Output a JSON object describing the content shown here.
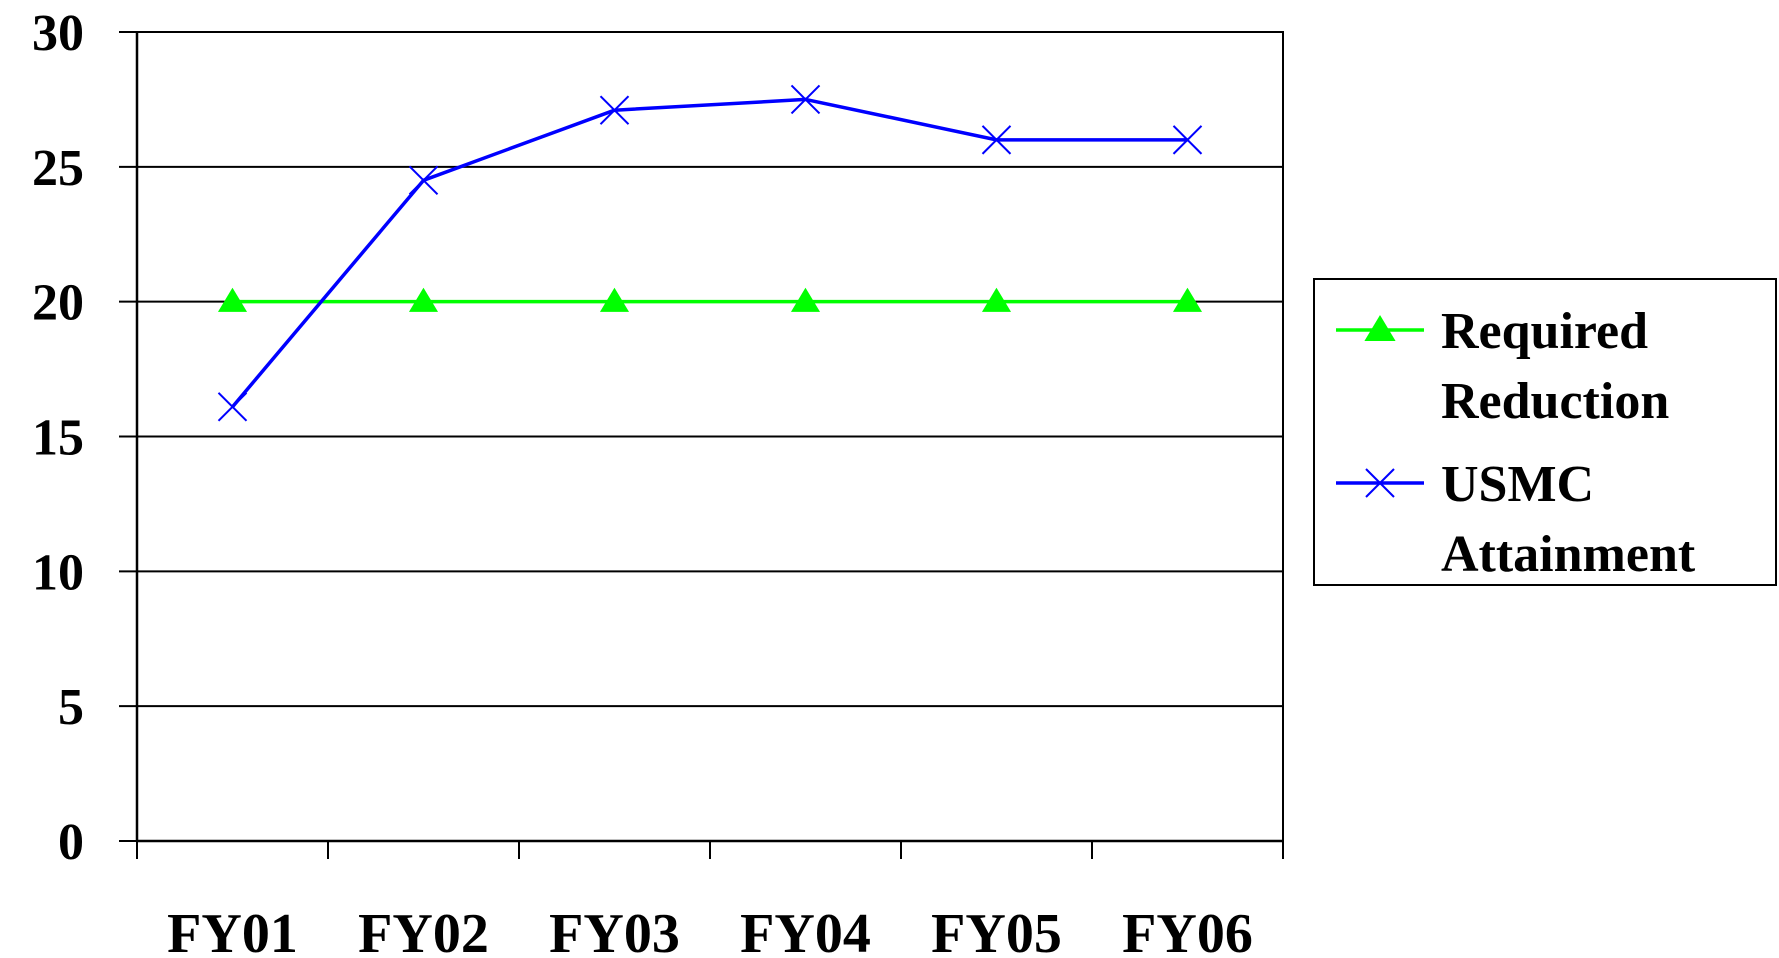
{
  "chart_data": {
    "type": "line",
    "title": "",
    "xlabel": "",
    "ylabel": "",
    "categories": [
      "FY01",
      "FY02",
      "FY03",
      "FY04",
      "FY05",
      "FY06"
    ],
    "ylim": [
      0,
      30
    ],
    "yticks": [
      0,
      5,
      10,
      15,
      20,
      25,
      30
    ],
    "grid": true,
    "legend_position": "right",
    "series": [
      {
        "name": "Required Reduction",
        "legend_lines": [
          "Required",
          "Reduction"
        ],
        "values": [
          20,
          20,
          20,
          20,
          20,
          20
        ],
        "color": "#00ff00",
        "marker": "triangle"
      },
      {
        "name": "USMC Attainment",
        "legend_lines": [
          "USMC",
          "Attainment"
        ],
        "values": [
          16.1,
          24.5,
          27.1,
          27.5,
          26,
          26
        ],
        "color": "#0000ff",
        "marker": "x"
      }
    ]
  }
}
